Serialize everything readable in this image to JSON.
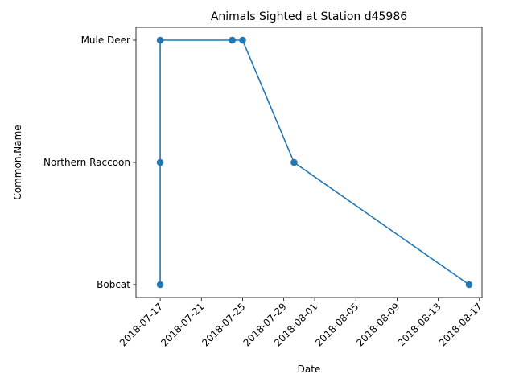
{
  "chart_data": {
    "type": "line",
    "title": "Animals Sighted at Station d45986",
    "xlabel": "Date",
    "ylabel": "Common.Name",
    "categories": [
      "Bobcat",
      "Northern Raccoon",
      "Mule Deer"
    ],
    "x_ticks": [
      "2018-07-17",
      "2018-07-21",
      "2018-07-25",
      "2018-07-29",
      "2018-08-01",
      "2018-08-05",
      "2018-08-09",
      "2018-08-13",
      "2018-08-17"
    ],
    "xlim": [
      "2018-07-15",
      "2018-08-17"
    ],
    "points": [
      {
        "x": "2018-07-17",
        "y": "Bobcat"
      },
      {
        "x": "2018-07-17",
        "y": "Northern Raccoon"
      },
      {
        "x": "2018-07-17",
        "y": "Mule Deer"
      },
      {
        "x": "2018-07-24",
        "y": "Mule Deer"
      },
      {
        "x": "2018-07-24",
        "y": "Mule Deer"
      },
      {
        "x": "2018-07-25",
        "y": "Mule Deer"
      },
      {
        "x": "2018-07-30",
        "y": "Northern Raccoon"
      },
      {
        "x": "2018-08-16",
        "y": "Bobcat"
      }
    ],
    "color": "#1f77b4",
    "grid": false,
    "legend": "none"
  }
}
